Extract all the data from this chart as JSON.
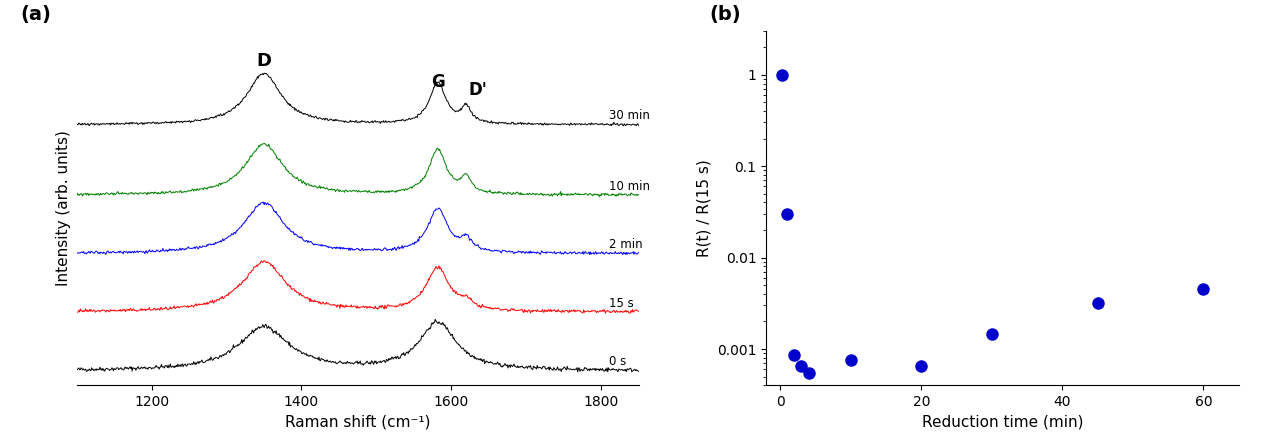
{
  "panel_b": {
    "x": [
      0.25,
      1.0,
      2.0,
      3.0,
      4.0,
      10.0,
      20.0,
      30.0,
      45.0,
      60.0
    ],
    "y": [
      1.0,
      0.03,
      0.00085,
      0.00065,
      0.00055,
      0.00075,
      0.00065,
      0.00145,
      0.0032,
      0.0045
    ],
    "color": "#0000CC",
    "marker": "o",
    "markersize": 9,
    "xlabel": "Reduction time (min)",
    "ylabel": "R(t) / R(15 s)",
    "xlim": [
      -2,
      65
    ],
    "xticks": [
      0,
      20,
      40,
      60
    ],
    "ylim_log": [
      0.0004,
      3.0
    ],
    "label": "(b)"
  },
  "panel_a": {
    "xlabel": "Raman shift (cm⁻¹)",
    "ylabel": "Intensity (arb. units)",
    "xlim": [
      1100,
      1850
    ],
    "xticks": [
      1200,
      1400,
      1600,
      1800
    ],
    "label": "(a)"
  },
  "background_color": "#ffffff"
}
